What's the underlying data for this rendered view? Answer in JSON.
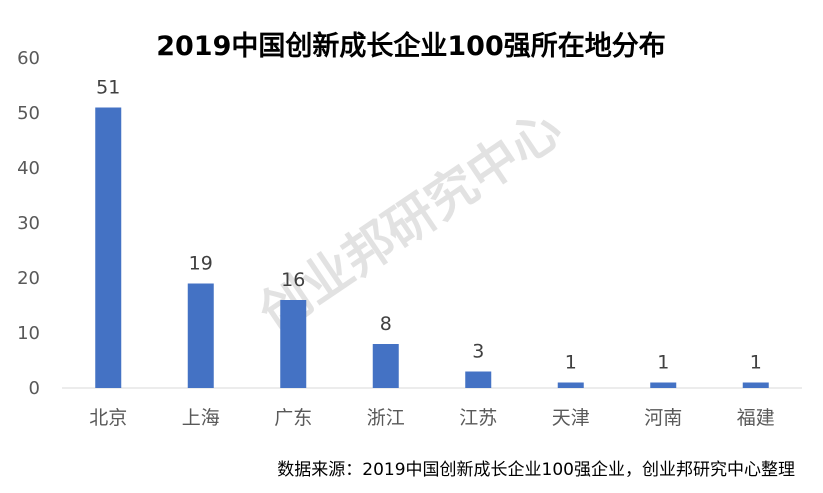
{
  "chart_data": {
    "type": "bar",
    "title": "2019中国创新成长企业100强所在地分布",
    "categories": [
      "北京",
      "上海",
      "广东",
      "浙江",
      "江苏",
      "天津",
      "河南",
      "福建"
    ],
    "values": [
      51,
      19,
      16,
      8,
      3,
      1,
      1,
      1
    ],
    "data_labels": [
      "51",
      "19",
      "16",
      "8",
      "3",
      "1",
      "1",
      "1"
    ],
    "ylim": [
      0,
      60
    ],
    "yticks": [
      0,
      10,
      20,
      30,
      40,
      50,
      60
    ],
    "ytick_labels": [
      "0",
      "10",
      "20",
      "30",
      "40",
      "50",
      "60"
    ],
    "xlabel": "",
    "ylabel": "",
    "grid": false,
    "legend": "none",
    "bar_color": "#4472c4",
    "source_note": "数据来源：2019中国创新成长企业100强企业，创业邦研究中心整理",
    "watermark": "创业邦研究中心"
  }
}
